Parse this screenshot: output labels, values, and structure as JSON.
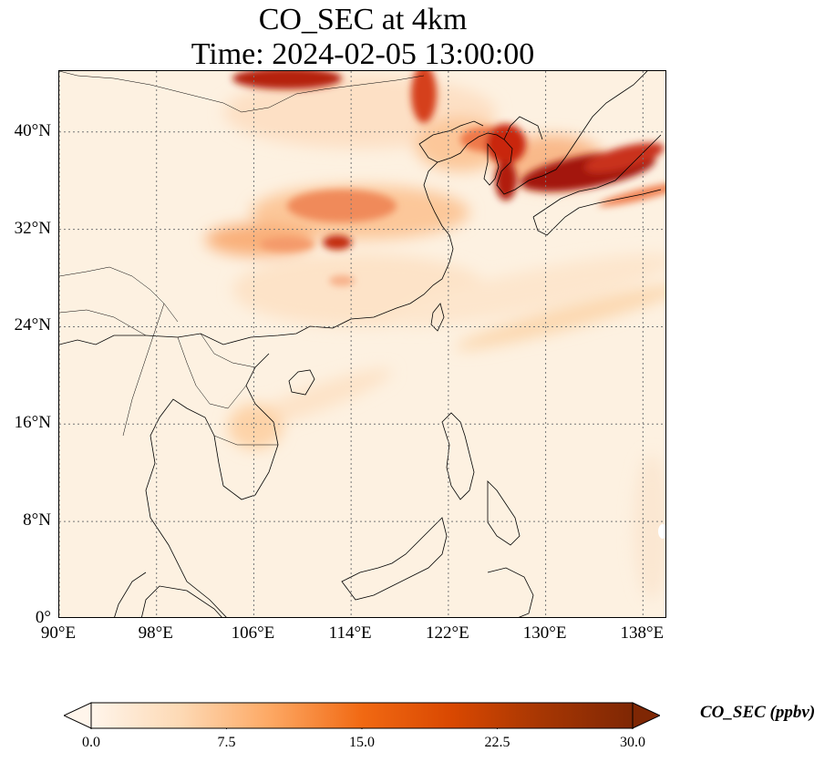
{
  "title": {
    "line1": "CO_SEC at 4km",
    "line2": "Time: 2024-02-05 13:00:00"
  },
  "map": {
    "lon_range": [
      90,
      140
    ],
    "lat_range": [
      0,
      45
    ],
    "lat_ticks": [
      {
        "value": 0,
        "label": "0°"
      },
      {
        "value": 8,
        "label": "8°N"
      },
      {
        "value": 16,
        "label": "16°N"
      },
      {
        "value": 24,
        "label": "24°N"
      },
      {
        "value": 32,
        "label": "32°N"
      },
      {
        "value": 40,
        "label": "40°N"
      }
    ],
    "lon_ticks": [
      {
        "value": 90,
        "label": "90°E"
      },
      {
        "value": 98,
        "label": "98°E"
      },
      {
        "value": 106,
        "label": "106°E"
      },
      {
        "value": 114,
        "label": "114°E"
      },
      {
        "value": 122,
        "label": "122°E"
      },
      {
        "value": 130,
        "label": "130°E"
      },
      {
        "value": 138,
        "label": "138°E"
      }
    ],
    "gridlines": true
  },
  "colorbar": {
    "label": "CO_SEC (ppbv)",
    "range": [
      0,
      30
    ],
    "colormap": [
      "#fff5eb",
      "#fdd9b4",
      "#fda762",
      "#f16913",
      "#d94801",
      "#a63603",
      "#7f2704"
    ],
    "ticks": [
      {
        "value": 0,
        "label": "0.0"
      },
      {
        "value": 7.5,
        "label": "7.5"
      },
      {
        "value": 15,
        "label": "15.0"
      },
      {
        "value": 22.5,
        "label": "22.5"
      },
      {
        "value": 30,
        "label": "30.0"
      }
    ]
  }
}
